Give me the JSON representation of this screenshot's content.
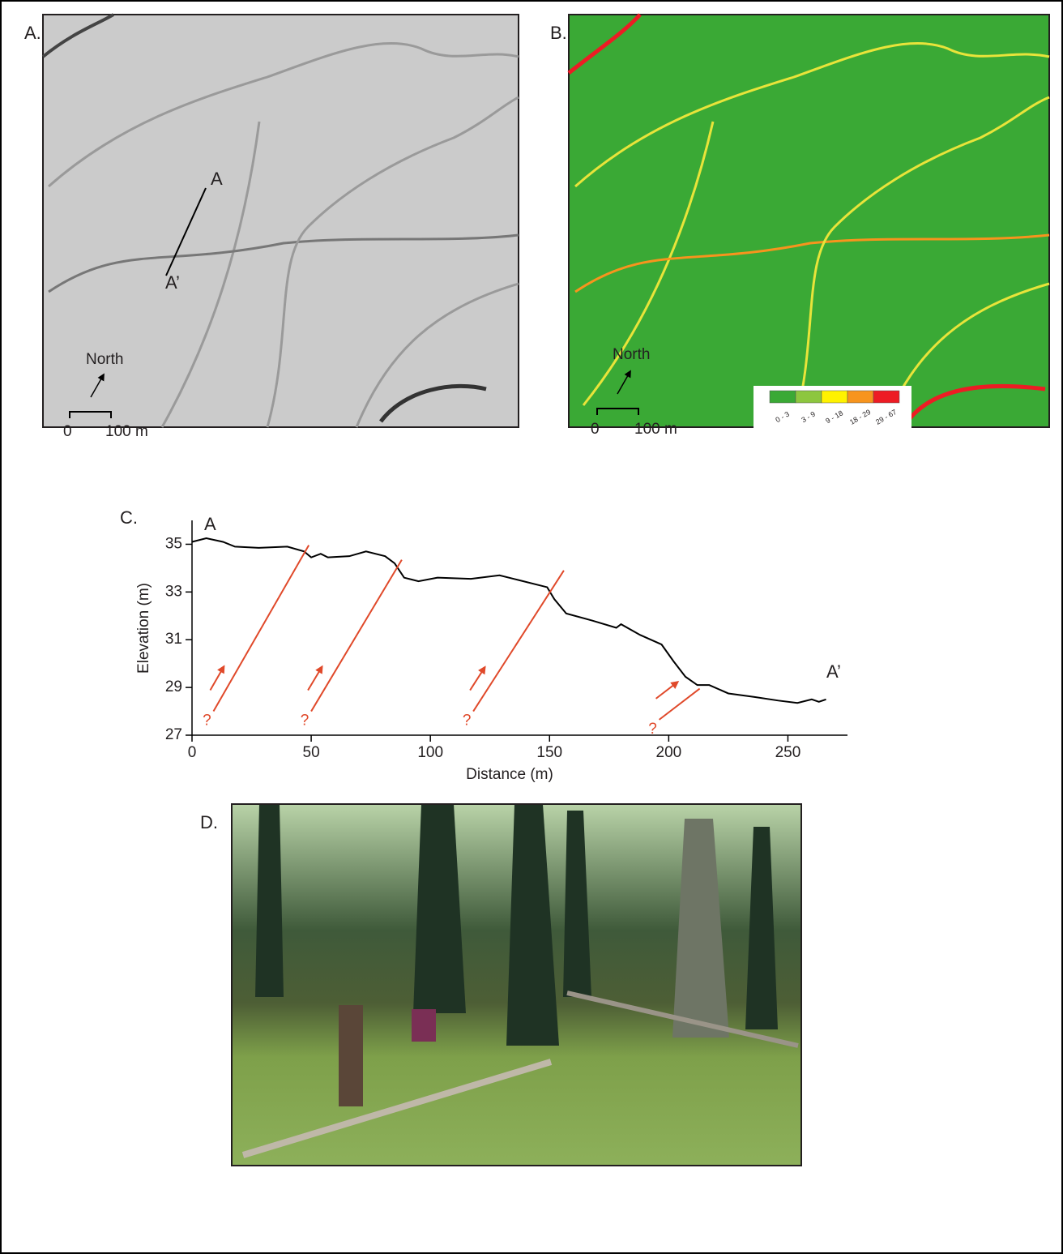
{
  "panels": {
    "a": {
      "label": "A.",
      "section_start": "A",
      "section_end": "A’",
      "north": "North",
      "scale_start": "0",
      "scale_end": "100 m"
    },
    "b": {
      "label": "B.",
      "north": "North",
      "scale_start": "0",
      "scale_end": "100 m",
      "legend": [
        {
          "label": "0 - 3",
          "color": "#3aa935"
        },
        {
          "label": "3 - 9",
          "color": "#8dc63f"
        },
        {
          "label": "9 - 18",
          "color": "#fff200"
        },
        {
          "label": "18 - 29",
          "color": "#f7941d"
        },
        {
          "label": "29 - 67",
          "color": "#ed1c24"
        }
      ]
    },
    "d": {
      "label": "D."
    }
  },
  "chart_data": {
    "type": "line",
    "label": "C.",
    "start_label": "A",
    "end_label": "A’",
    "x_label": "Distance (m)",
    "y_label": "Elevation (m)",
    "x": [
      0,
      6,
      13,
      18,
      28,
      40,
      47,
      50,
      54,
      57,
      66,
      73,
      81,
      85,
      89,
      95,
      103,
      117,
      129,
      137,
      149,
      152,
      157,
      168,
      178,
      180,
      188,
      197,
      202,
      207,
      212,
      217,
      225,
      236,
      246,
      254,
      260,
      263,
      266
    ],
    "series": [
      {
        "color": "#000000",
        "values": [
          35.1,
          35.25,
          35.1,
          34.9,
          34.85,
          34.9,
          34.7,
          34.45,
          34.6,
          34.45,
          34.5,
          34.7,
          34.5,
          34.2,
          33.6,
          33.45,
          33.6,
          33.55,
          33.7,
          33.5,
          33.2,
          32.7,
          32.1,
          31.8,
          31.5,
          31.65,
          31.2,
          30.8,
          30.1,
          29.45,
          29.1,
          29.1,
          28.75,
          28.6,
          28.45,
          28.35,
          28.5,
          28.4,
          28.5
        ]
      }
    ],
    "xlim": [
      0,
      275
    ],
    "xticks": [
      0,
      50,
      100,
      150,
      200,
      250
    ],
    "ylim": [
      27,
      36
    ],
    "yticks": [
      27,
      29,
      31,
      33,
      35
    ],
    "fault_color": "#e0492a",
    "faults": [
      {
        "x": [
          9,
          49
        ],
        "y": [
          28,
          34.96
        ],
        "label": "?"
      },
      {
        "x": [
          50,
          88
        ],
        "y": [
          28,
          34.35
        ],
        "label": "?"
      },
      {
        "x": [
          118,
          156
        ],
        "y": [
          28,
          33.9
        ],
        "label": "?"
      },
      {
        "x": [
          196,
          213
        ],
        "y": [
          27.65,
          28.95
        ],
        "label": "?"
      }
    ]
  }
}
